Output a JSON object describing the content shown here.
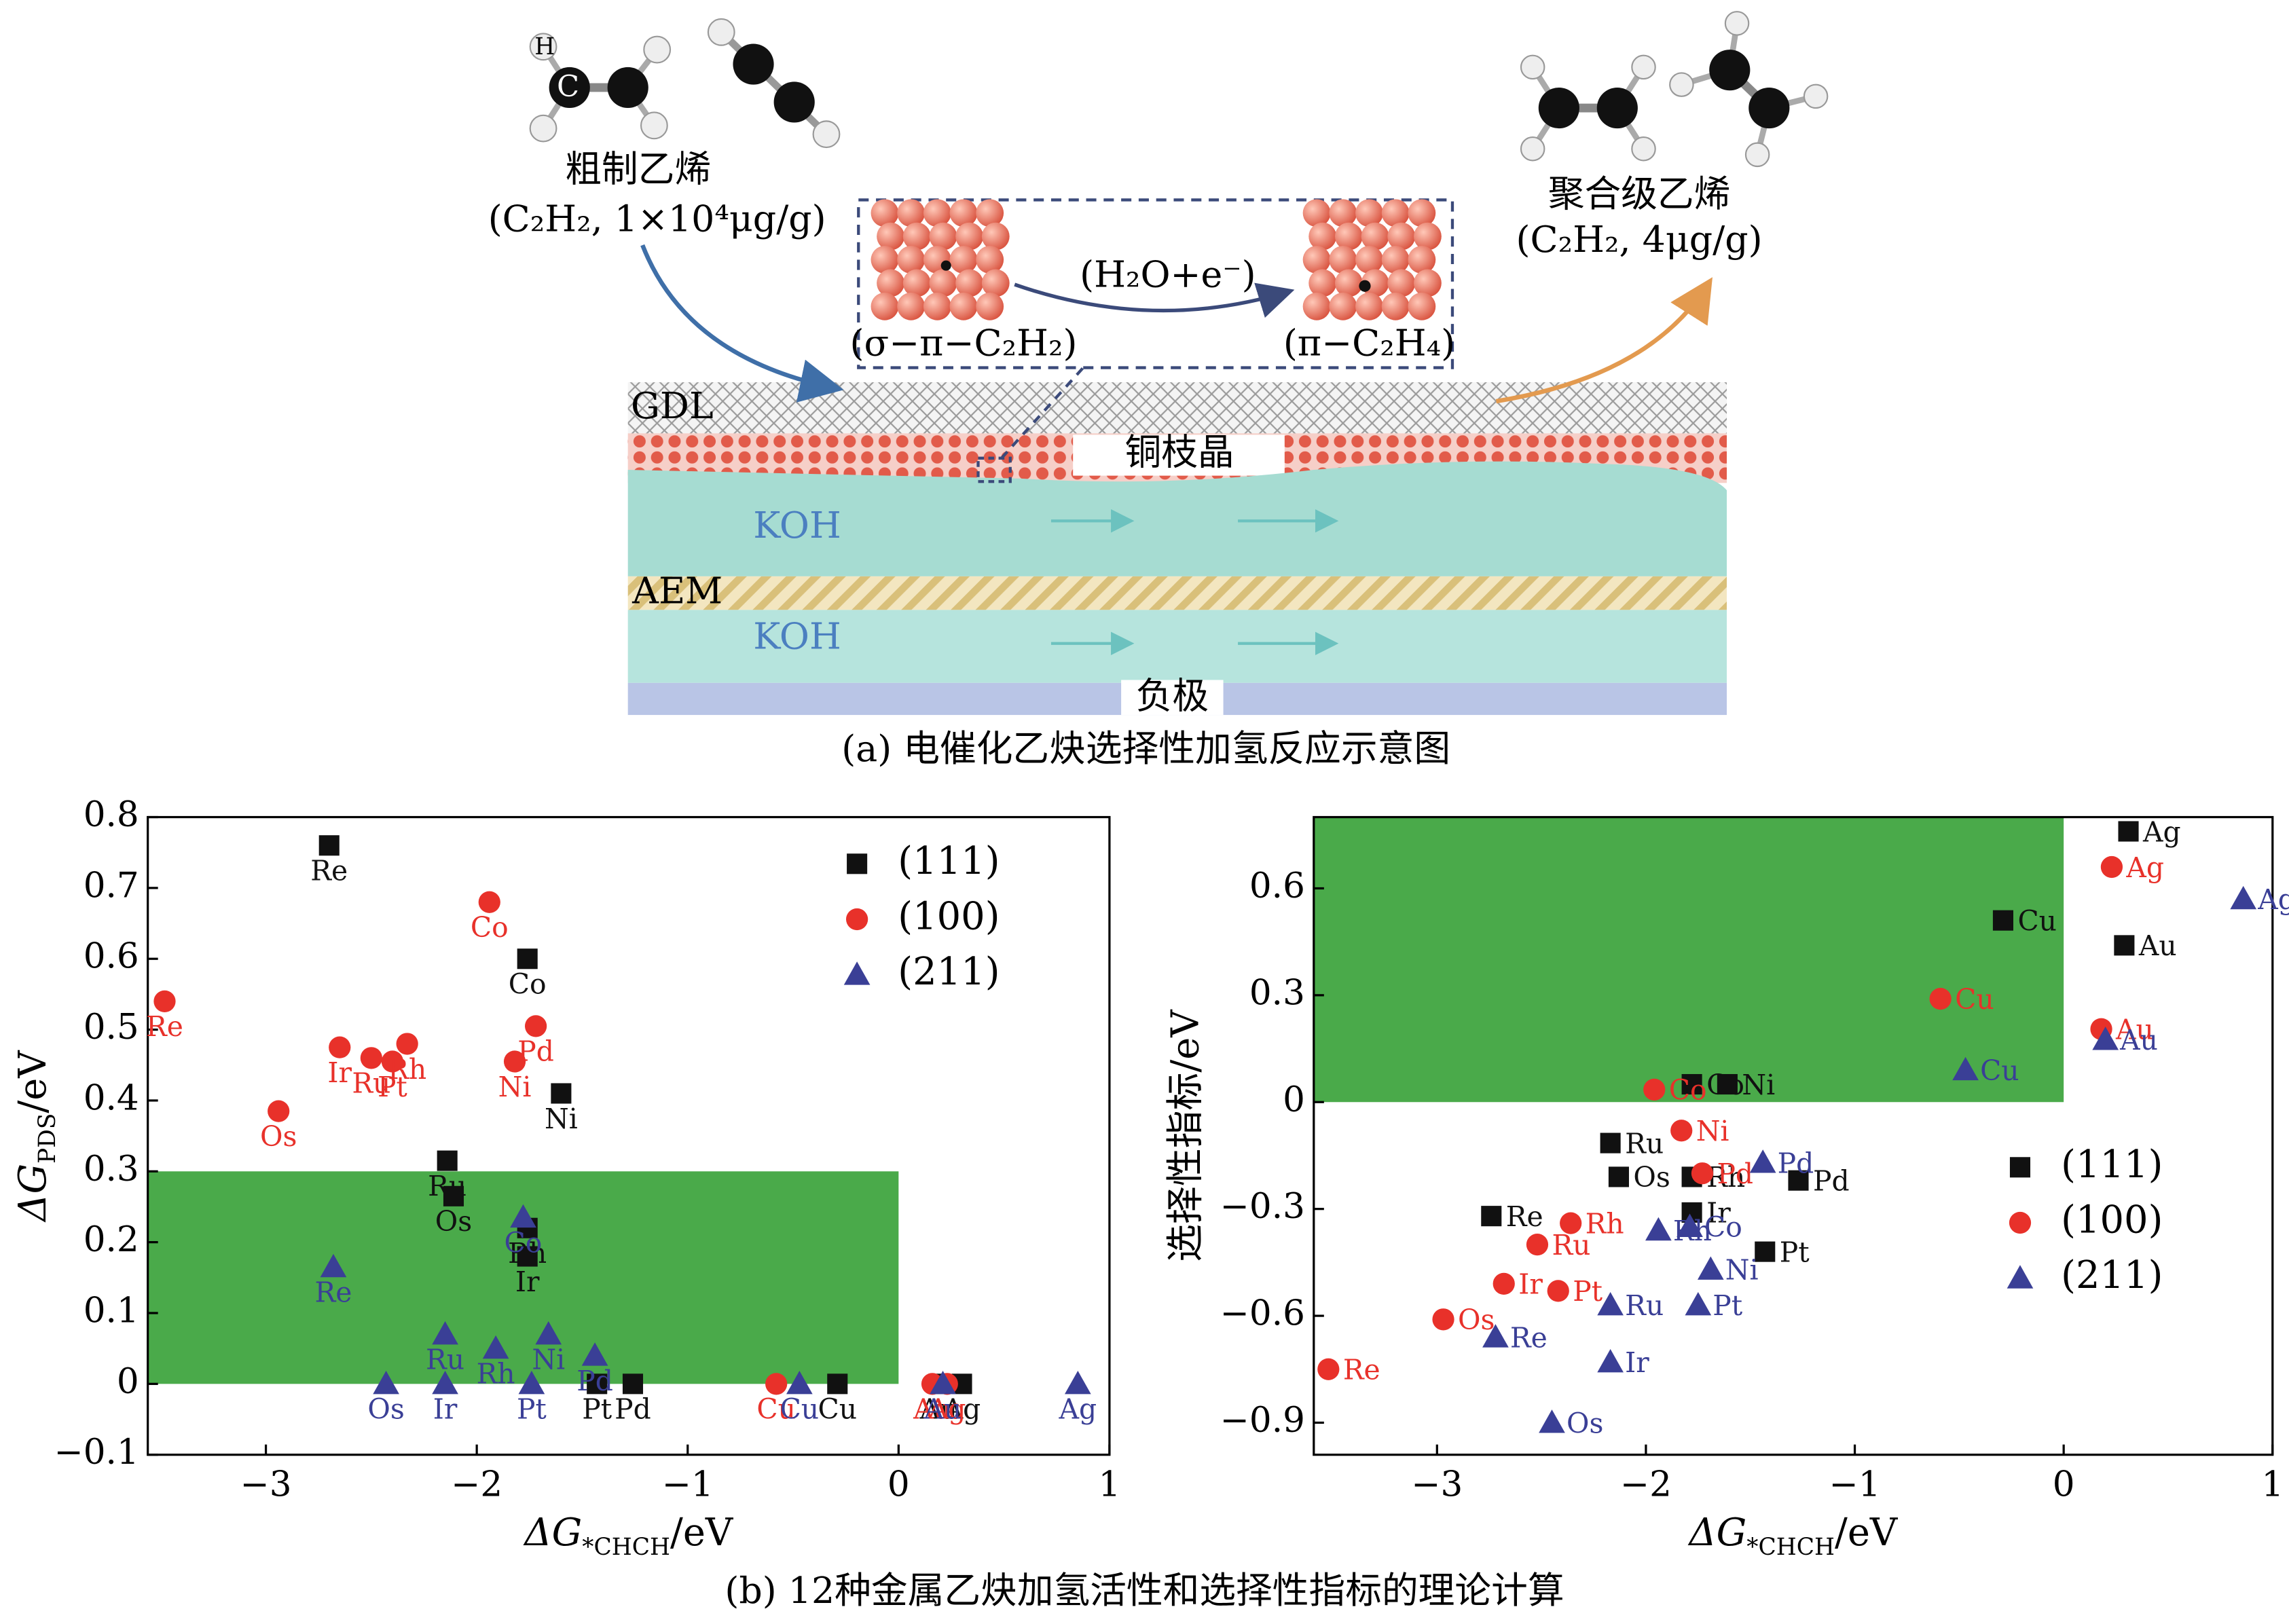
{
  "diagram": {
    "feed": {
      "label": "粗制乙烯",
      "detail": "(C₂H₂, 1×10⁴μg/g)"
    },
    "product": {
      "label": "聚合级乙烯",
      "detail": "(C₂H₂, 4μg/g)"
    },
    "atoms": {
      "h": "H",
      "c": "C"
    },
    "inset": {
      "reactant": "(σ−π−C₂H₂)",
      "reagent": "(H₂O+e⁻)",
      "product": "(π−C₂H₄)"
    },
    "layers": {
      "gdl": "GDL",
      "dendrite": "铜枝晶",
      "koh_top": "KOH",
      "aem": "AEM",
      "koh_bottom": "KOH",
      "cathode": "负极"
    },
    "caption": "(a) 电催化乙炔选择性加氢反应示意图"
  },
  "chart_data": [
    {
      "type": "scatter",
      "xlabel": {
        "symbol": "ΔG",
        "sub": "*CHCH",
        "unit": "/eV"
      },
      "ylabel": {
        "symbol": "ΔG",
        "sub": "PDS",
        "unit": "/eV"
      },
      "xlim": [
        -3.56,
        1
      ],
      "ylim": [
        -0.1,
        0.8
      ],
      "xticks": [
        {
          "value": -3,
          "label": "−3"
        },
        {
          "value": -2,
          "label": "−2"
        },
        {
          "value": -1,
          "label": "−1"
        },
        0,
        1
      ],
      "yticks": [
        {
          "value": -0.1,
          "label": "−0.1"
        },
        0,
        0.1,
        0.2,
        0.3,
        0.4,
        0.5,
        0.6,
        0.7,
        0.8
      ],
      "grid": false,
      "legend": "upper right",
      "region": {
        "xlim": [
          -3.56,
          0
        ],
        "ylim": [
          0,
          0.3
        ],
        "color": "#4aaa4a"
      },
      "series": [
        {
          "name": "(111)",
          "color": "#111111",
          "marker": "square",
          "labels": [
            "Re",
            "Co",
            "Ni",
            "Ru",
            "Os",
            "Rh",
            "Ir",
            "Pt",
            "Pd",
            "Cu",
            "Au",
            "Ag"
          ],
          "x": [
            -2.7,
            -1.76,
            -1.6,
            -2.14,
            -2.11,
            -1.76,
            -1.76,
            -1.43,
            -1.26,
            -0.29,
            0.19,
            0.3
          ],
          "values": [
            0.76,
            0.6,
            0.41,
            0.315,
            0.265,
            0.22,
            0.18,
            0,
            0,
            0,
            0,
            0
          ]
        },
        {
          "name": "(100)",
          "color": "#e8312a",
          "marker": "circle",
          "labels": [
            "Re",
            "Os",
            "Ir",
            "Ru",
            "Pt",
            "Rh",
            "Co",
            "Pd",
            "Ni",
            "Cu",
            "Au",
            "Ag"
          ],
          "x": [
            -3.48,
            -2.94,
            -2.65,
            -2.5,
            -2.4,
            -2.33,
            -1.94,
            -1.72,
            -1.82,
            -0.58,
            0.16,
            0.23
          ],
          "values": [
            0.54,
            0.385,
            0.475,
            0.46,
            0.455,
            0.48,
            0.68,
            0.505,
            0.455,
            0,
            0,
            0
          ]
        },
        {
          "name": "(211)",
          "color": "#3a3f96",
          "marker": "triangle",
          "labels": [
            "Re",
            "Co",
            "Ru",
            "Rh",
            "Ni",
            "Pd",
            "Os",
            "Ir",
            "Pt",
            "Cu",
            "Au",
            "Ag"
          ],
          "x": [
            -2.68,
            -1.78,
            -2.15,
            -1.91,
            -1.66,
            -1.44,
            -2.43,
            -2.15,
            -1.74,
            -0.47,
            0.21,
            0.85
          ],
          "values": [
            0.165,
            0.235,
            0.07,
            0.05,
            0.07,
            0.04,
            0,
            0,
            0,
            0,
            0,
            0
          ]
        }
      ]
    },
    {
      "type": "scatter",
      "xlabel": {
        "symbol": "ΔG",
        "sub": "*CHCH",
        "unit": "/eV"
      },
      "ylabel": "选择性指标/eV",
      "xlim": [
        -3.59,
        1
      ],
      "ylim": [
        -0.99,
        0.8
      ],
      "xticks": [
        {
          "value": -3,
          "label": "−3"
        },
        {
          "value": -2,
          "label": "−2"
        },
        {
          "value": -1,
          "label": "−1"
        },
        0,
        1
      ],
      "yticks": [
        {
          "value": -0.9,
          "label": "−0.9"
        },
        {
          "value": -0.6,
          "label": "−0.6"
        },
        {
          "value": -0.3,
          "label": "−0.3"
        },
        0,
        0.3,
        0.6
      ],
      "grid": false,
      "legend": "lower right",
      "region": {
        "xlim": [
          -3.59,
          0
        ],
        "ylim": [
          0,
          0.8
        ],
        "color": "#4aaa4a"
      },
      "series": [
        {
          "name": "(111)",
          "color": "#111111",
          "marker": "square",
          "labels": [
            "Ag",
            "Au",
            "Cu",
            "Co",
            "Ni",
            "Ru",
            "Os",
            "Rh",
            "Ir",
            "Re",
            "Pt",
            "Pd"
          ],
          "x": [
            0.31,
            0.29,
            -0.29,
            -1.78,
            -1.61,
            -2.17,
            -2.13,
            -1.78,
            -1.78,
            -2.74,
            -1.43,
            -1.27
          ],
          "values": [
            0.76,
            0.44,
            0.51,
            0.05,
            0.05,
            -0.115,
            -0.21,
            -0.21,
            -0.31,
            -0.32,
            -0.42,
            -0.22
          ]
        },
        {
          "name": "(100)",
          "color": "#e8312a",
          "marker": "circle",
          "labels": [
            "Ag",
            "Cu",
            "Au",
            "Co",
            "Ni",
            "Pd",
            "Rh",
            "Ru",
            "Ir",
            "Pt",
            "Os",
            "Re"
          ],
          "x": [
            0.23,
            -0.59,
            0.18,
            -1.96,
            -1.83,
            -1.73,
            -2.36,
            -2.52,
            -2.68,
            -2.42,
            -2.97,
            -3.52
          ],
          "values": [
            0.66,
            0.29,
            0.205,
            0.035,
            -0.08,
            -0.2,
            -0.34,
            -0.4,
            -0.51,
            -0.53,
            -0.61,
            -0.75
          ]
        },
        {
          "name": "(211)",
          "color": "#3a3f96",
          "marker": "triangle",
          "labels": [
            "Ag",
            "Au",
            "Cu",
            "Pd",
            "Rh",
            "Co",
            "Ni",
            "Ru",
            "Pt",
            "Re",
            "Ir",
            "Os"
          ],
          "x": [
            0.86,
            0.2,
            -0.47,
            -1.44,
            -1.94,
            -1.79,
            -1.69,
            -2.17,
            -1.75,
            -2.72,
            -2.17,
            -2.45
          ],
          "values": [
            0.57,
            0.175,
            0.09,
            -0.17,
            -0.36,
            -0.35,
            -0.47,
            -0.57,
            -0.57,
            -0.66,
            -0.73,
            -0.9
          ]
        }
      ]
    }
  ],
  "figure_caption": "(b) 12种金属乙炔加氢活性和选择性指标的理论计算"
}
